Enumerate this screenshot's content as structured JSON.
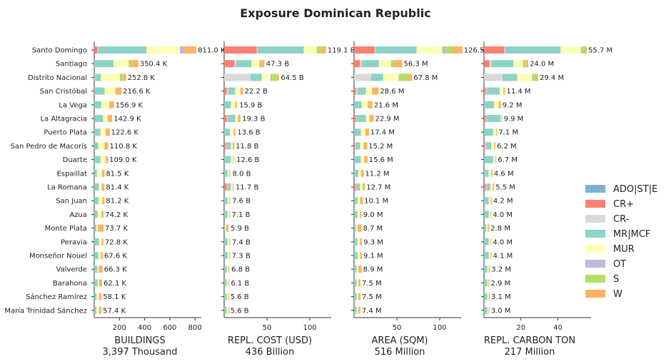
{
  "chart_data": {
    "type": "bar",
    "title": "Exposure Dominican Republic",
    "categories": [
      "Santo Domingo",
      "Santiago",
      "Distrito Nacional",
      "San Cristóbal",
      "La Vega",
      "La Altagracia",
      "Puerto Plata",
      "San Pedro de Macorís",
      "Duarte",
      "Espaillat",
      "La Romana",
      "San Juan",
      "Azua",
      "Monte Plata",
      "Peravia",
      "Monseñor Nouel",
      "Valverde",
      "Barahona",
      "Sánchez Ramírez",
      "María Trinidad Sánchez"
    ],
    "legend": {
      "placement": "right",
      "items": [
        {
          "name": "ADO|ST|E",
          "color": "#80b1d3"
        },
        {
          "name": "CR+",
          "color": "#fb8072"
        },
        {
          "name": "CR-",
          "color": "#d9d9d9"
        },
        {
          "name": "MR|MCF",
          "color": "#8dd3c7"
        },
        {
          "name": "MUR",
          "color": "#ffffb3"
        },
        {
          "name": "OT",
          "color": "#bebada"
        },
        {
          "name": "S",
          "color": "#b3de69"
        },
        {
          "name": "W",
          "color": "#fdb462"
        }
      ]
    },
    "panels": [
      {
        "xlabel": "BUILDINGS",
        "subtitle": "3,397 Thousand",
        "xticks": [
          200,
          400,
          600,
          800
        ],
        "xlim": [
          0,
          850
        ],
        "totals": [
          811.0,
          350.4,
          252.8,
          216.6,
          156.9,
          142.9,
          122.6,
          110.8,
          109.0,
          81.5,
          81.4,
          81.2,
          74.2,
          73.7,
          72.8,
          67.6,
          66.3,
          62.1,
          58.1,
          57.4
        ],
        "labels": [
          "811.0 K",
          "350.4 K",
          "252.8 K",
          "216.6 K",
          "156.9 K",
          "142.9 K",
          "122.6 K",
          "110.8 K",
          "109.0 K",
          "81.5 K",
          "81.4 K",
          "81.2 K",
          "74.2 K",
          "73.7 K",
          "72.8 K",
          "67.6 K",
          "66.3 K",
          "62.1 K",
          "58.1 K",
          "57.4 K"
        ],
        "series": [
          {
            "name": "CR+",
            "values": [
              25,
              0,
              0,
              0,
              0,
              0,
              0,
              0,
              0,
              0,
              0,
              0,
              0,
              0,
              0,
              0,
              0,
              0,
              0,
              0
            ]
          },
          {
            "name": "CR-",
            "values": [
              5,
              3,
              3,
              2,
              0,
              0,
              0,
              0,
              0,
              0,
              0,
              0,
              0,
              0,
              0,
              0,
              0,
              0,
              0,
              0
            ]
          },
          {
            "name": "MR|MCF",
            "values": [
              385,
              150,
              50,
              80,
              55,
              70,
              50,
              32,
              50,
              22,
              38,
              34,
              28,
              18,
              38,
              33,
              25,
              28,
              18,
              18
            ]
          },
          {
            "name": "MUR",
            "values": [
              265,
              120,
              150,
              85,
              65,
              35,
              40,
              50,
              40,
              40,
              20,
              30,
              30,
              10,
              20,
              20,
              10,
              10,
              20,
              20
            ]
          },
          {
            "name": "OT",
            "values": [
              35,
              0,
              0,
              0,
              0,
              0,
              0,
              0,
              0,
              0,
              0,
              0,
              0,
              0,
              0,
              0,
              0,
              0,
              0,
              0
            ]
          },
          {
            "name": "S",
            "values": [
              0,
              17,
              30,
              0,
              0,
              4,
              0,
              0,
              0,
              0,
              0,
              0,
              0,
              0,
              0,
              0,
              0,
              0,
              0,
              0
            ]
          },
          {
            "name": "W",
            "values": [
              96,
              60,
              20,
              50,
              37,
              34,
              33,
              29,
              19,
              20,
              23,
              17,
              16,
              46,
              15,
              15,
              31,
              24,
              20,
              19
            ]
          }
        ]
      },
      {
        "xlabel": "REPL. COST (USD)",
        "subtitle": "436 Billion",
        "xticks": [
          50,
          100
        ],
        "xlim": [
          0,
          125
        ],
        "totals": [
          119.1,
          47.3,
          64.5,
          22.2,
          15.9,
          19.3,
          13.6,
          11.8,
          12.6,
          8.0,
          11.7,
          7.6,
          7.1,
          5.9,
          7.4,
          7.3,
          6.8,
          6.1,
          5.6,
          5.6
        ],
        "labels": [
          "119.1 B",
          "47.3 B",
          "64.5 B",
          "22.2 B",
          "15.9 B",
          "19.3 B",
          "13.6 B",
          "11.8 B",
          "12.6 B",
          "8.0 B",
          "11.7 B",
          "7.6 B",
          "7.1 B",
          "5.9 B",
          "7.4 B",
          "7.3 B",
          "6.8 B",
          "6.1 B",
          "5.6 B",
          "5.6 B"
        ],
        "series": [
          {
            "name": "CR+",
            "values": [
              38,
              12,
              0,
              3,
              0,
              3,
              0,
              2,
              0,
              0,
              3,
              0,
              0,
              0,
              0,
              0,
              0,
              0,
              0,
              0
            ]
          },
          {
            "name": "CR-",
            "values": [
              1,
              2,
              31,
              2,
              0,
              1,
              0,
              1,
              0,
              0,
              1,
              0,
              0,
              0,
              0,
              0,
              0,
              0,
              0,
              0
            ]
          },
          {
            "name": "MR|MCF",
            "values": [
              54,
              18,
              13,
              8,
              8,
              9,
              7,
              5,
              8,
              4,
              4,
              4,
              4,
              1,
              4,
              4,
              3,
              3,
              3,
              3
            ]
          },
          {
            "name": "MUR",
            "values": [
              15,
              9,
              10,
              6,
              5,
              3,
              4,
              2,
              3,
              2,
              2,
              2,
              2,
              1,
              2,
              2,
              2,
              2,
              2,
              2
            ]
          },
          {
            "name": "OT",
            "values": [
              0,
              0,
              2,
              0,
              0,
              0,
              0,
              0,
              0,
              0,
              0,
              0,
              0,
              0,
              0,
              0,
              0,
              0,
              0,
              0
            ]
          },
          {
            "name": "S",
            "values": [
              5,
              1,
              7,
              0,
              0,
              0,
              0,
              0,
              0,
              0,
              0,
              0,
              0,
              0,
              0,
              0,
              0,
              0,
              0,
              0
            ]
          },
          {
            "name": "W",
            "values": [
              6,
              5,
              1,
              3,
              2,
              3,
              2,
              2,
              1,
              1,
              1,
              1,
              1,
              3,
              1,
              1,
              1,
              1,
              1,
              1
            ]
          }
        ]
      },
      {
        "xlabel": "AREA (SQM)",
        "subtitle": "516 Million",
        "xticks": [
          50,
          100
        ],
        "xlim": [
          0,
          125
        ],
        "totals": [
          126.5,
          56.3,
          67.8,
          28.6,
          21.6,
          22.9,
          17.4,
          15.2,
          15.6,
          11.2,
          12.7,
          10.1,
          9.0,
          8.7,
          9.3,
          9.1,
          8.9,
          7.5,
          7.5,
          7.4
        ],
        "labels": [
          "126.5 M",
          "56.3 M",
          "67.8 M",
          "28.6 M",
          "21.6 M",
          "22.9 M",
          "17.4 M",
          "15.2 M",
          "15.6 M",
          "11.2 M",
          "12.7 M",
          "10.1 M",
          "9.0 M",
          "8.7 M",
          "9.3 M",
          "9.1 M",
          "8.9 M",
          "7.5 M",
          "7.5 M",
          "7.4 M"
        ],
        "series": [
          {
            "name": "CR+",
            "values": [
              24,
              7,
              0,
              2,
              0,
              2,
              0,
              1,
              0,
              0,
              2,
              0,
              0,
              0,
              0,
              0,
              0,
              0,
              0,
              0
            ]
          },
          {
            "name": "CR-",
            "values": [
              1,
              2,
              20,
              2,
              0,
              1,
              0,
              1,
              0,
              0,
              1,
              0,
              0,
              0,
              0,
              0,
              0,
              0,
              0,
              0
            ]
          },
          {
            "name": "MR|MCF",
            "values": [
              48,
              20,
              14,
              10,
              9,
              11,
              8,
              5,
              8,
              5,
              4,
              4,
              4,
              2,
              4,
              4,
              3,
              3,
              3,
              3
            ]
          },
          {
            "name": "MUR",
            "values": [
              30,
              14,
              18,
              7,
              7,
              4,
              5,
              4,
              4,
              3,
              3,
              3,
              3,
              2,
              3,
              3,
              2,
              2,
              2,
              2
            ]
          },
          {
            "name": "OT",
            "values": [
              4,
              0,
              1,
              0,
              0,
              0,
              0,
              0,
              0,
              0,
              0,
              0,
              0,
              0,
              0,
              0,
              0,
              0,
              0,
              0
            ]
          },
          {
            "name": "S",
            "values": [
              8,
              4,
              10,
              0,
              0,
              0,
              0,
              0,
              0,
              0,
              0,
              0,
              0,
              0,
              0,
              0,
              0,
              0,
              0,
              0
            ]
          },
          {
            "name": "W",
            "values": [
              11.5,
              9.3,
              4.8,
              7.6,
              5.6,
              4.9,
              4.4,
              4.2,
              3.6,
              3.2,
              2.7,
              3.1,
              2.0,
              4.7,
              2.3,
              2.1,
              3.9,
              2.5,
              2.5,
              2.4
            ]
          }
        ]
      },
      {
        "xlabel": "REPL. CARBON TON",
        "subtitle": "217 Million",
        "xticks": [
          20,
          40
        ],
        "xlim": [
          0,
          58
        ],
        "totals": [
          55.7,
          24.0,
          29.4,
          11.4,
          9.2,
          9.9,
          7.1,
          6.2,
          6.7,
          4.6,
          5.5,
          4.2,
          4.0,
          2.8,
          4.0,
          4.1,
          3.2,
          2.9,
          3.1,
          3.0
        ],
        "labels": [
          "55.7 M",
          "24.0 M",
          "29.4 M",
          "11.4 M",
          "9.2 M",
          "9.9 M",
          "7.1 M",
          "6.2 M",
          "6.7 M",
          "4.6 M",
          "5.5 M",
          "4.2 M",
          "4.0 M",
          "2.8 M",
          "4.0 M",
          "4.1 M",
          "3.2 M",
          "2.9 M",
          "3.1 M",
          "3.0 M"
        ],
        "series": [
          {
            "name": "CR+",
            "values": [
              11,
              3,
              0,
              1,
              0,
              1,
              0,
              0.5,
              0,
              0,
              1,
              0,
              0,
              0,
              0,
              0,
              0,
              0,
              0,
              0
            ]
          },
          {
            "name": "CR-",
            "values": [
              0.5,
              1,
              10,
              0.5,
              0,
              0.5,
              0,
              0.5,
              0,
              0,
              0.5,
              0,
              0,
              0,
              0,
              0,
              0,
              0,
              0,
              0
            ]
          },
          {
            "name": "MR|MCF",
            "values": [
              30,
              12,
              8,
              7,
              5.5,
              7.5,
              5,
              3,
              5,
              2.5,
              2,
              2.6,
              2.6,
              1.2,
              2.6,
              2.6,
              1.8,
              1.8,
              1.8,
              1.8
            ]
          },
          {
            "name": "MUR",
            "values": [
              11,
              5,
              8,
              2,
              2.5,
              0.5,
              1.6,
              1.5,
              1.2,
              1.3,
              1.2,
              1,
              1,
              0.8,
              1,
              1,
              0.8,
              0.6,
              0.8,
              0.8
            ]
          },
          {
            "name": "OT",
            "values": [
              0.5,
              0,
              0.5,
              0,
              0,
              0,
              0,
              0,
              0,
              0,
              0,
              0,
              0,
              0,
              0,
              0,
              0,
              0,
              0,
              0
            ]
          },
          {
            "name": "S",
            "values": [
              2.7,
              1.5,
              2.9,
              0,
              0,
              0,
              0,
              0,
              0,
              0,
              0,
              0,
              0,
              0,
              0,
              0,
              0,
              0,
              0,
              0
            ]
          },
          {
            "name": "W",
            "values": [
              0,
              1.5,
              0,
              0.9,
              1.2,
              0.4,
              0.5,
              0.7,
              0.5,
              0.8,
              0.8,
              0.6,
              0.4,
              0.8,
              0.4,
              0.5,
              0.6,
              0.5,
              0.5,
              0.4
            ]
          }
        ]
      }
    ]
  }
}
